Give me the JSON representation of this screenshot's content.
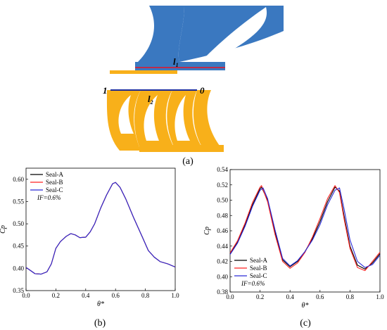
{
  "figure": {
    "panel_a": "(a)",
    "panel_b": "(b)",
    "panel_c": "(c)",
    "geometry_labels": {
      "l1_main": "l",
      "l1_sub": "1",
      "l2_main": "l",
      "l2_sub": "2",
      "end_left": "1",
      "end_right": "0"
    }
  },
  "colors": {
    "stator": "#3a78c0",
    "rotor": "#f8b01a",
    "seal_a": "#000000",
    "seal_b": "#ff2020",
    "seal_c": "#2a2ad8",
    "line_red": "#d0203a",
    "line_blue": "#1a2a9a"
  },
  "chart_data": [
    {
      "type": "line",
      "panel": "(b)",
      "xlabel": "θ*",
      "ylabel": "Cp",
      "xlim": [
        0.0,
        1.0
      ],
      "ylim": [
        0.35,
        0.625
      ],
      "xticks": [
        "0.0",
        "0.2",
        "0.4",
        "0.6",
        "0.8",
        "1.0"
      ],
      "yticks": [
        "0.35",
        "0.40",
        "0.45",
        "0.50",
        "0.55",
        "0.60"
      ],
      "legend_position": "top-left",
      "annotation": "IF=0.6%",
      "series": [
        {
          "name": "Seal-A",
          "color": "#000000",
          "x": [
            0.0,
            0.03,
            0.06,
            0.1,
            0.14,
            0.17,
            0.2,
            0.23,
            0.27,
            0.3,
            0.33,
            0.36,
            0.4,
            0.43,
            0.46,
            0.5,
            0.54,
            0.58,
            0.6,
            0.63,
            0.67,
            0.72,
            0.78,
            0.82,
            0.86,
            0.9,
            0.95,
            1.0
          ],
          "y": [
            0.402,
            0.395,
            0.388,
            0.387,
            0.392,
            0.41,
            0.445,
            0.46,
            0.472,
            0.478,
            0.475,
            0.469,
            0.47,
            0.482,
            0.5,
            0.535,
            0.565,
            0.59,
            0.593,
            0.582,
            0.555,
            0.515,
            0.47,
            0.44,
            0.425,
            0.415,
            0.41,
            0.403
          ]
        },
        {
          "name": "Seal-B",
          "color": "#ff2020",
          "x": [
            0.0,
            0.03,
            0.06,
            0.1,
            0.14,
            0.17,
            0.2,
            0.23,
            0.27,
            0.3,
            0.33,
            0.36,
            0.4,
            0.43,
            0.46,
            0.5,
            0.54,
            0.58,
            0.6,
            0.63,
            0.67,
            0.72,
            0.78,
            0.82,
            0.86,
            0.9,
            0.95,
            1.0
          ],
          "y": [
            0.402,
            0.395,
            0.388,
            0.387,
            0.392,
            0.41,
            0.445,
            0.46,
            0.472,
            0.478,
            0.475,
            0.469,
            0.47,
            0.482,
            0.5,
            0.535,
            0.565,
            0.59,
            0.593,
            0.582,
            0.555,
            0.515,
            0.47,
            0.44,
            0.425,
            0.415,
            0.41,
            0.403
          ]
        },
        {
          "name": "Seal-C",
          "color": "#2a2ad8",
          "x": [
            0.0,
            0.03,
            0.06,
            0.1,
            0.14,
            0.17,
            0.2,
            0.23,
            0.27,
            0.3,
            0.33,
            0.36,
            0.4,
            0.43,
            0.46,
            0.5,
            0.54,
            0.58,
            0.6,
            0.63,
            0.67,
            0.72,
            0.78,
            0.82,
            0.86,
            0.9,
            0.95,
            1.0
          ],
          "y": [
            0.402,
            0.395,
            0.388,
            0.387,
            0.392,
            0.41,
            0.445,
            0.46,
            0.472,
            0.478,
            0.475,
            0.469,
            0.47,
            0.482,
            0.5,
            0.535,
            0.565,
            0.59,
            0.593,
            0.582,
            0.555,
            0.515,
            0.47,
            0.44,
            0.425,
            0.415,
            0.41,
            0.403
          ]
        }
      ]
    },
    {
      "type": "line",
      "panel": "(c)",
      "xlabel": "θ*",
      "ylabel": "Cp",
      "xlim": [
        0.0,
        1.0
      ],
      "ylim": [
        0.38,
        0.54
      ],
      "xticks": [
        "0.0",
        "0.2",
        "0.4",
        "0.6",
        "0.8",
        "1.0"
      ],
      "yticks": [
        "0.38",
        "0.40",
        "0.42",
        "0.44",
        "0.46",
        "0.48",
        "0.50",
        "0.52",
        "0.54"
      ],
      "legend_position": "bottom-left",
      "annotation": "IF=0.6%",
      "series": [
        {
          "name": "Seal-A",
          "color": "#000000",
          "x": [
            0.0,
            0.05,
            0.1,
            0.15,
            0.2,
            0.21,
            0.25,
            0.3,
            0.35,
            0.4,
            0.45,
            0.5,
            0.55,
            0.6,
            0.65,
            0.7,
            0.73,
            0.76,
            0.8,
            0.85,
            0.9,
            0.95,
            1.0
          ],
          "y": [
            0.43,
            0.445,
            0.468,
            0.494,
            0.515,
            0.517,
            0.5,
            0.458,
            0.422,
            0.413,
            0.42,
            0.433,
            0.45,
            0.472,
            0.498,
            0.517,
            0.512,
            0.48,
            0.44,
            0.415,
            0.41,
            0.418,
            0.43
          ]
        },
        {
          "name": "Seal-B",
          "color": "#ff2020",
          "x": [
            0.0,
            0.05,
            0.1,
            0.15,
            0.2,
            0.21,
            0.25,
            0.3,
            0.35,
            0.4,
            0.45,
            0.5,
            0.55,
            0.6,
            0.65,
            0.7,
            0.73,
            0.76,
            0.8,
            0.85,
            0.9,
            0.95,
            1.0
          ],
          "y": [
            0.431,
            0.447,
            0.47,
            0.497,
            0.517,
            0.519,
            0.498,
            0.455,
            0.42,
            0.411,
            0.418,
            0.432,
            0.452,
            0.476,
            0.502,
            0.519,
            0.51,
            0.476,
            0.437,
            0.412,
            0.408,
            0.42,
            0.432
          ]
        },
        {
          "name": "Seal-C",
          "color": "#2a2ad8",
          "x": [
            0.0,
            0.05,
            0.1,
            0.15,
            0.2,
            0.22,
            0.25,
            0.3,
            0.35,
            0.4,
            0.45,
            0.5,
            0.55,
            0.6,
            0.65,
            0.7,
            0.73,
            0.76,
            0.8,
            0.85,
            0.9,
            0.95,
            1.0
          ],
          "y": [
            0.429,
            0.444,
            0.466,
            0.492,
            0.513,
            0.516,
            0.502,
            0.461,
            0.424,
            0.414,
            0.421,
            0.433,
            0.448,
            0.468,
            0.494,
            0.513,
            0.516,
            0.489,
            0.448,
            0.42,
            0.412,
            0.416,
            0.428
          ]
        }
      ]
    }
  ]
}
